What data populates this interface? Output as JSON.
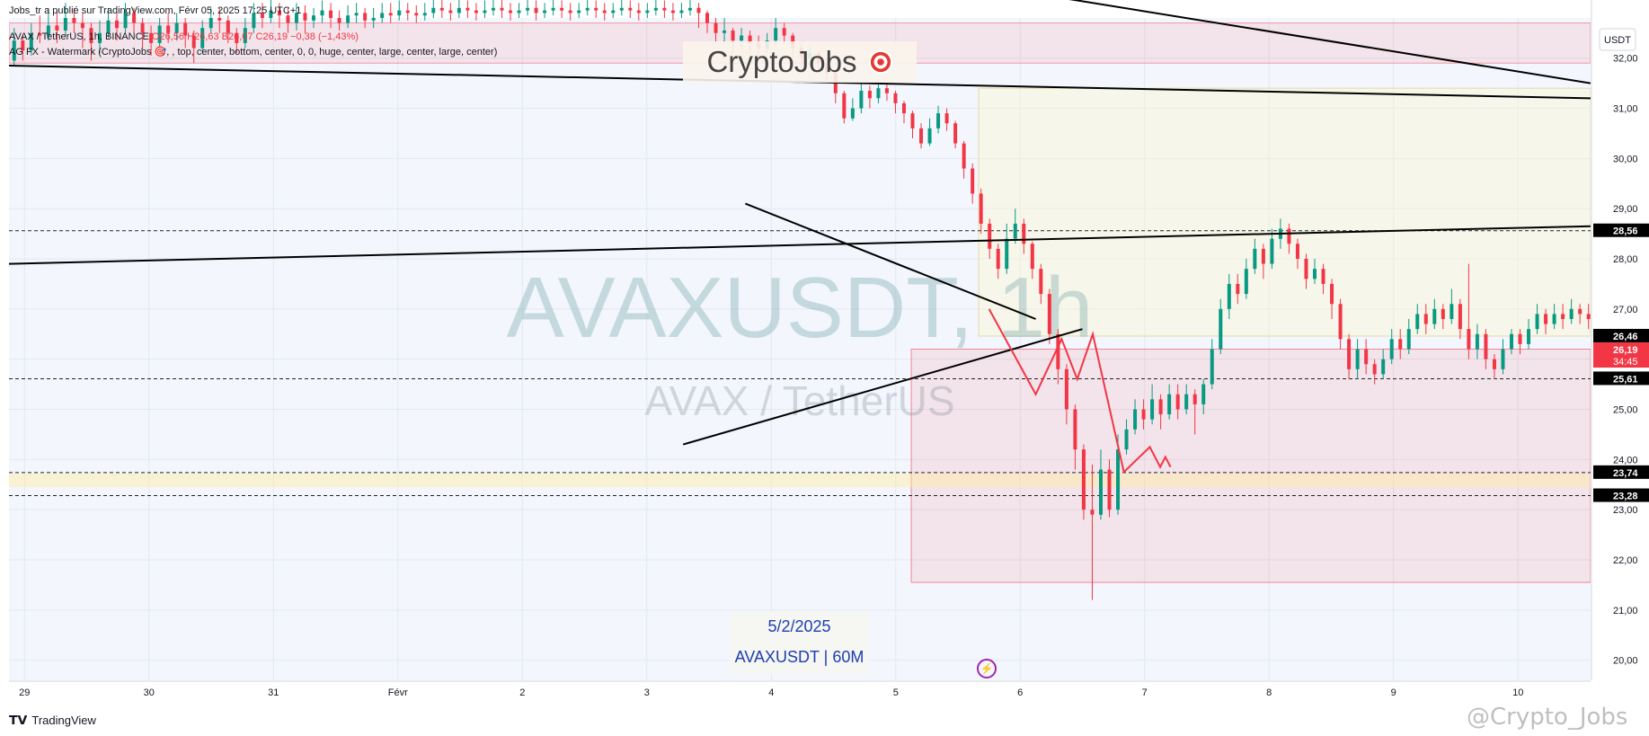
{
  "publisher_line": "Jobs_tr a publié sur TradingView.com, Févr 05, 2025 17:25 UTC+1",
  "legend": {
    "symbol": "AVAX / TetherUS, 1h, BINANCE",
    "ohlc": "O26,56 H26,63 B26,07 C26,19 −0,38 (−1,43%)",
    "indicator": "AG FX - Watermark (CryptoJobs 🎯, , top, center, bottom, center, 0, 0, huge, center, large, center, large, center)"
  },
  "watermark": {
    "brand": "CryptoJobs",
    "symbol_big": "AVAXUSDT, 1h",
    "symbol_sub": "AVAX / TetherUS",
    "date": "5/2/2025",
    "pair": "AVAXUSDT | 60M"
  },
  "footer": {
    "tv_brand": "TradingView",
    "credit": "@Crypto_Jobs"
  },
  "lightning_icon": "lightning-icon",
  "chart_data": {
    "type": "candlestick",
    "currency_label": "USDT",
    "ylim": [
      19.6,
      32.8
    ],
    "y_ticks": [
      "20,00",
      "21,00",
      "22,00",
      "23,00",
      "24,00",
      "25,00",
      "26,00",
      "27,00",
      "28,00",
      "29,00",
      "30,00",
      "31,00",
      "32,00"
    ],
    "x_ticks": [
      {
        "label": "29",
        "t": 0
      },
      {
        "label": "30",
        "t": 24
      },
      {
        "label": "31",
        "t": 48
      },
      {
        "label": "Févr",
        "t": 72
      },
      {
        "label": "2",
        "t": 96
      },
      {
        "label": "3",
        "t": 120
      },
      {
        "label": "4",
        "t": 144
      },
      {
        "label": "5",
        "t": 168
      },
      {
        "label": "6",
        "t": 192
      },
      {
        "label": "7",
        "t": 216
      },
      {
        "label": "8",
        "t": 240
      },
      {
        "label": "9",
        "t": 264
      },
      {
        "label": "10",
        "t": 288
      }
    ],
    "xlim": [
      -3,
      302
    ],
    "colors": {
      "up": "#089981",
      "down": "#f23645",
      "projection": "#f23645",
      "line": "#000000"
    },
    "price_labels": [
      {
        "value": "28,56",
        "y": 28.56,
        "bg": "#000000"
      },
      {
        "value": "26,46",
        "y": 26.46,
        "bg": "#000000"
      },
      {
        "value": "26,19",
        "y": 26.19,
        "bg": "#f23645",
        "sub": "34:45"
      },
      {
        "value": "25,61",
        "y": 25.61,
        "bg": "#000000"
      },
      {
        "value": "23,74",
        "y": 23.74,
        "bg": "#000000"
      },
      {
        "value": "23,28",
        "y": 23.28,
        "bg": "#000000"
      }
    ],
    "dashed_levels": [
      28.56,
      25.61,
      23.74,
      23.28
    ],
    "zones": [
      {
        "t1": -3,
        "t2": 302,
        "y1": 31.9,
        "y2": 32.7,
        "fill": "rgba(242,54,69,0.10)",
        "stroke": "rgba(242,54,69,0.45)"
      },
      {
        "t1": 184,
        "t2": 302,
        "y1": 26.46,
        "y2": 31.4,
        "fill": "rgba(255,245,200,0.35)",
        "stroke": "rgba(220,210,140,0.7)"
      },
      {
        "t1": 171,
        "t2": 302,
        "y1": 21.55,
        "y2": 26.2,
        "fill": "rgba(242,54,69,0.10)",
        "stroke": "rgba(242,54,69,0.55)"
      },
      {
        "t1": -3,
        "t2": 302,
        "y1": 23.45,
        "y2": 23.72,
        "fill": "rgba(255,235,160,0.45)",
        "stroke": "none"
      }
    ],
    "trendlines": [
      {
        "t1": -3,
        "y1": 31.85,
        "t2": 302,
        "y2": 31.2
      },
      {
        "t1": -3,
        "y1": 27.9,
        "t2": 302,
        "y2": 28.65
      },
      {
        "t1": 139,
        "y1": 29.1,
        "t2": 195,
        "y2": 26.8
      },
      {
        "t1": 127,
        "y1": 24.3,
        "t2": 204,
        "y2": 26.6
      },
      {
        "t1": 200,
        "y1": 33.2,
        "t2": 302,
        "y2": 31.5
      }
    ],
    "projection_path": [
      [
        186,
        27.0
      ],
      [
        195,
        25.3
      ],
      [
        200,
        26.4
      ],
      [
        203,
        25.6
      ],
      [
        206,
        26.5
      ],
      [
        212,
        23.75
      ],
      [
        217,
        24.25
      ],
      [
        219,
        23.85
      ],
      [
        220,
        24.05
      ],
      [
        221,
        23.85
      ]
    ],
    "candles": [
      [
        31.95,
        32.35,
        32.6,
        31.85
      ],
      [
        32.35,
        32.15,
        32.45,
        31.95
      ],
      [
        32.15,
        32.5,
        32.7,
        32.05
      ],
      [
        32.5,
        32.45,
        32.85,
        32.3
      ],
      [
        32.45,
        32.65,
        33.0,
        32.35
      ],
      [
        32.65,
        32.55,
        32.95,
        32.3
      ],
      [
        32.55,
        32.8,
        33.1,
        32.45
      ],
      [
        32.8,
        32.7,
        33.0,
        32.5
      ],
      [
        32.7,
        32.6,
        32.9,
        32.2
      ],
      [
        32.6,
        32.3,
        32.7,
        31.95
      ],
      [
        32.3,
        32.5,
        32.75,
        32.1
      ],
      [
        32.5,
        32.75,
        33.0,
        32.4
      ],
      [
        32.75,
        32.6,
        32.9,
        32.35
      ],
      [
        32.6,
        32.9,
        33.1,
        32.5
      ],
      [
        32.9,
        32.7,
        33.0,
        32.5
      ],
      [
        32.7,
        32.5,
        32.8,
        32.2
      ],
      [
        32.5,
        32.3,
        32.65,
        32.05
      ],
      [
        32.3,
        32.65,
        32.8,
        32.2
      ],
      [
        32.65,
        32.5,
        32.9,
        32.3
      ],
      [
        32.5,
        32.7,
        32.9,
        32.35
      ],
      [
        32.7,
        32.45,
        32.8,
        32.2
      ],
      [
        32.45,
        32.2,
        32.55,
        31.9
      ],
      [
        32.2,
        32.6,
        32.75,
        32.1
      ],
      [
        32.6,
        32.8,
        33.0,
        32.5
      ],
      [
        32.8,
        32.75,
        33.0,
        32.5
      ],
      [
        32.75,
        32.5,
        32.85,
        32.3
      ],
      [
        32.5,
        32.3,
        32.6,
        32.1
      ],
      [
        32.3,
        32.6,
        32.8,
        32.2
      ],
      [
        32.6,
        32.9,
        33.1,
        32.5
      ],
      [
        32.9,
        32.8,
        33.1,
        32.6
      ],
      [
        32.8,
        32.95,
        33.2,
        32.7
      ],
      [
        32.95,
        32.85,
        33.1,
        32.6
      ],
      [
        32.85,
        32.7,
        33.0,
        32.5
      ],
      [
        32.7,
        32.9,
        33.1,
        32.55
      ],
      [
        32.9,
        32.75,
        33.05,
        32.5
      ],
      [
        32.75,
        32.85,
        33.0,
        32.6
      ],
      [
        32.85,
        32.95,
        33.15,
        32.7
      ],
      [
        32.95,
        32.8,
        33.1,
        32.6
      ],
      [
        32.8,
        32.7,
        32.95,
        32.55
      ],
      [
        32.7,
        32.85,
        33.05,
        32.6
      ],
      [
        32.85,
        32.9,
        33.1,
        32.7
      ],
      [
        32.9,
        32.75,
        33.0,
        32.6
      ],
      [
        32.75,
        32.8,
        33.0,
        32.6
      ],
      [
        32.8,
        32.9,
        33.1,
        32.7
      ],
      [
        32.9,
        32.85,
        33.1,
        32.7
      ],
      [
        32.85,
        32.95,
        33.15,
        32.75
      ],
      [
        32.95,
        32.9,
        33.1,
        32.75
      ],
      [
        32.9,
        32.85,
        33.05,
        32.7
      ],
      [
        32.85,
        32.9,
        33.1,
        32.75
      ],
      [
        32.9,
        33.0,
        33.2,
        32.8
      ],
      [
        33.0,
        32.95,
        33.2,
        32.8
      ],
      [
        32.95,
        32.9,
        33.1,
        32.75
      ],
      [
        32.9,
        33.0,
        33.2,
        32.8
      ],
      [
        33.0,
        32.95,
        33.15,
        32.8
      ],
      [
        32.95,
        32.9,
        33.1,
        32.75
      ],
      [
        32.9,
        32.95,
        33.15,
        32.8
      ],
      [
        32.95,
        33.0,
        33.2,
        32.85
      ],
      [
        33.0,
        32.95,
        33.2,
        32.8
      ],
      [
        32.95,
        32.9,
        33.1,
        32.75
      ],
      [
        32.9,
        32.95,
        33.1,
        32.8
      ],
      [
        32.95,
        33.0,
        33.2,
        32.85
      ],
      [
        33.0,
        32.9,
        33.15,
        32.75
      ],
      [
        32.9,
        32.95,
        33.1,
        32.8
      ],
      [
        32.95,
        33.0,
        33.2,
        32.85
      ],
      [
        33.0,
        32.95,
        33.15,
        32.8
      ],
      [
        32.95,
        32.9,
        33.1,
        32.75
      ],
      [
        32.9,
        32.95,
        33.1,
        32.8
      ],
      [
        32.95,
        33.0,
        33.2,
        32.85
      ],
      [
        33.0,
        32.95,
        33.15,
        32.8
      ],
      [
        32.95,
        32.9,
        33.1,
        32.75
      ],
      [
        32.9,
        32.95,
        33.1,
        32.8
      ],
      [
        32.95,
        33.0,
        33.2,
        32.85
      ],
      [
        33.0,
        32.95,
        33.15,
        32.8
      ],
      [
        32.95,
        32.9,
        33.1,
        32.75
      ],
      [
        32.9,
        32.95,
        33.1,
        32.8
      ],
      [
        32.95,
        33.0,
        33.2,
        32.85
      ],
      [
        33.0,
        32.95,
        33.15,
        32.8
      ],
      [
        32.95,
        32.9,
        33.1,
        32.75
      ],
      [
        32.9,
        32.95,
        33.1,
        32.8
      ],
      [
        32.95,
        33.0,
        33.2,
        32.85
      ],
      [
        33.0,
        32.9,
        33.1,
        32.6
      ],
      [
        32.9,
        32.7,
        32.95,
        32.5
      ],
      [
        32.7,
        32.5,
        32.8,
        32.3
      ],
      [
        32.5,
        32.55,
        32.8,
        32.3
      ],
      [
        32.55,
        32.35,
        32.6,
        32.1
      ],
      [
        32.35,
        32.45,
        32.6,
        32.2
      ],
      [
        32.45,
        32.3,
        32.55,
        32.1
      ],
      [
        32.3,
        32.2,
        32.45,
        32.0
      ],
      [
        32.2,
        32.35,
        32.5,
        32.1
      ],
      [
        32.35,
        32.6,
        32.8,
        32.25
      ],
      [
        32.6,
        32.45,
        32.7,
        32.3
      ],
      [
        32.45,
        32.2,
        32.5,
        32.0
      ],
      [
        32.2,
        32.0,
        32.3,
        31.8
      ],
      [
        32.0,
        32.1,
        32.25,
        31.85
      ],
      [
        32.1,
        31.9,
        32.15,
        31.75
      ],
      [
        31.9,
        31.7,
        32.0,
        31.55
      ],
      [
        31.7,
        31.3,
        31.75,
        31.1
      ],
      [
        31.3,
        30.8,
        31.35,
        30.7
      ],
      [
        30.8,
        31.0,
        31.2,
        30.75
      ],
      [
        31.0,
        31.35,
        31.5,
        30.9
      ],
      [
        31.35,
        31.2,
        31.45,
        31.0
      ],
      [
        31.2,
        31.4,
        31.55,
        31.1
      ],
      [
        31.4,
        31.3,
        31.5,
        31.15
      ],
      [
        31.3,
        31.1,
        31.35,
        30.9
      ],
      [
        31.1,
        30.9,
        31.15,
        30.7
      ],
      [
        30.9,
        30.6,
        30.95,
        30.4
      ],
      [
        30.6,
        30.3,
        30.7,
        30.2
      ],
      [
        30.3,
        30.6,
        30.8,
        30.25
      ],
      [
        30.6,
        30.9,
        31.05,
        30.5
      ],
      [
        30.9,
        30.7,
        31.0,
        30.55
      ],
      [
        30.7,
        30.3,
        30.75,
        30.2
      ],
      [
        30.3,
        29.8,
        30.35,
        29.6
      ],
      [
        29.8,
        29.3,
        29.9,
        29.1
      ],
      [
        29.3,
        28.7,
        29.4,
        28.5
      ],
      [
        28.7,
        28.2,
        28.8,
        28.0
      ],
      [
        28.2,
        27.8,
        28.3,
        27.6
      ],
      [
        27.8,
        28.4,
        28.7,
        27.7
      ],
      [
        28.4,
        28.7,
        29.0,
        28.3
      ],
      [
        28.7,
        28.3,
        28.8,
        28.1
      ],
      [
        28.3,
        27.8,
        28.35,
        27.6
      ],
      [
        27.8,
        27.3,
        27.9,
        27.1
      ],
      [
        27.3,
        26.5,
        27.4,
        26.3
      ],
      [
        26.5,
        25.8,
        26.6,
        25.5
      ],
      [
        25.8,
        25.0,
        25.9,
        24.7
      ],
      [
        25.0,
        24.2,
        25.1,
        23.8
      ],
      [
        24.2,
        23.0,
        24.3,
        22.8
      ],
      [
        23.0,
        22.9,
        23.9,
        21.2
      ],
      [
        22.9,
        23.8,
        24.2,
        22.8
      ],
      [
        23.8,
        23.0,
        24.0,
        22.85
      ],
      [
        23.0,
        24.2,
        24.5,
        22.9
      ],
      [
        24.2,
        24.6,
        24.8,
        24.1
      ],
      [
        24.6,
        25.0,
        25.2,
        24.5
      ],
      [
        25.0,
        24.8,
        25.2,
        24.6
      ],
      [
        24.8,
        25.2,
        25.5,
        24.7
      ],
      [
        25.2,
        24.9,
        25.3,
        24.6
      ],
      [
        24.9,
        25.3,
        25.5,
        24.8
      ],
      [
        25.3,
        25.0,
        25.5,
        24.8
      ],
      [
        25.0,
        25.3,
        25.5,
        24.9
      ],
      [
        25.3,
        25.1,
        25.4,
        24.5
      ],
      [
        25.1,
        25.5,
        25.6,
        24.9
      ],
      [
        25.5,
        26.2,
        26.4,
        25.4
      ],
      [
        26.2,
        27.0,
        27.2,
        26.1
      ],
      [
        27.0,
        27.5,
        27.7,
        26.8
      ],
      [
        27.5,
        27.3,
        27.7,
        27.1
      ],
      [
        27.3,
        27.8,
        28.0,
        27.2
      ],
      [
        27.8,
        28.2,
        28.4,
        27.7
      ],
      [
        28.2,
        27.9,
        28.3,
        27.6
      ],
      [
        27.9,
        28.4,
        28.6,
        27.8
      ],
      [
        28.4,
        28.6,
        28.8,
        28.2
      ],
      [
        28.6,
        28.3,
        28.7,
        28.1
      ],
      [
        28.3,
        28.0,
        28.4,
        27.8
      ],
      [
        28.0,
        27.6,
        28.1,
        27.4
      ],
      [
        27.6,
        27.8,
        28.0,
        27.5
      ],
      [
        27.8,
        27.5,
        27.9,
        27.3
      ],
      [
        27.5,
        27.1,
        27.6,
        26.8
      ],
      [
        27.1,
        26.4,
        27.2,
        26.2
      ],
      [
        26.4,
        25.8,
        26.5,
        25.6
      ],
      [
        25.8,
        26.2,
        26.4,
        25.6
      ],
      [
        26.2,
        25.9,
        26.4,
        25.7
      ],
      [
        25.9,
        25.7,
        26.0,
        25.5
      ],
      [
        25.7,
        26.0,
        26.2,
        25.6
      ],
      [
        26.0,
        26.4,
        26.6,
        25.9
      ],
      [
        26.4,
        26.2,
        26.6,
        26.0
      ],
      [
        26.2,
        26.6,
        26.8,
        26.1
      ],
      [
        26.6,
        26.9,
        27.1,
        26.5
      ],
      [
        26.9,
        26.7,
        27.1,
        26.5
      ],
      [
        26.7,
        27.0,
        27.2,
        26.6
      ],
      [
        27.0,
        26.8,
        27.1,
        26.6
      ],
      [
        26.8,
        27.1,
        27.4,
        26.7
      ],
      [
        27.1,
        26.6,
        27.2,
        26.4
      ],
      [
        26.6,
        26.2,
        27.9,
        26.0
      ],
      [
        26.2,
        26.5,
        26.7,
        26.0
      ],
      [
        26.5,
        26.0,
        26.6,
        25.8
      ],
      [
        26.0,
        25.8,
        26.1,
        25.6
      ],
      [
        25.8,
        26.2,
        26.4,
        25.7
      ],
      [
        26.2,
        26.5,
        26.6,
        26.1
      ],
      [
        26.5,
        26.3,
        26.6,
        26.1
      ],
      [
        26.3,
        26.6,
        26.8,
        26.2
      ],
      [
        26.6,
        26.9,
        27.1,
        26.5
      ],
      [
        26.9,
        26.7,
        27.0,
        26.5
      ],
      [
        26.7,
        26.9,
        27.1,
        26.6
      ],
      [
        26.9,
        26.8,
        27.1,
        26.6
      ],
      [
        26.8,
        27.0,
        27.2,
        26.7
      ],
      [
        27.0,
        26.9,
        27.1,
        26.7
      ],
      [
        26.9,
        26.8,
        27.1,
        26.6
      ],
      [
        26.8,
        27.0,
        27.2,
        26.7
      ],
      [
        27.0,
        26.8,
        27.1,
        26.6
      ],
      [
        26.8,
        27.1,
        27.3,
        26.7
      ],
      [
        27.1,
        27.3,
        27.4,
        27.0
      ],
      [
        27.3,
        27.0,
        27.4,
        26.9
      ],
      [
        27.0,
        26.9,
        27.1,
        26.7
      ],
      [
        26.9,
        26.56,
        27.0,
        26.4
      ],
      [
        26.56,
        26.19,
        26.63,
        26.07
      ]
    ],
    "candle_t0": -2,
    "candle_step": 1.65
  }
}
